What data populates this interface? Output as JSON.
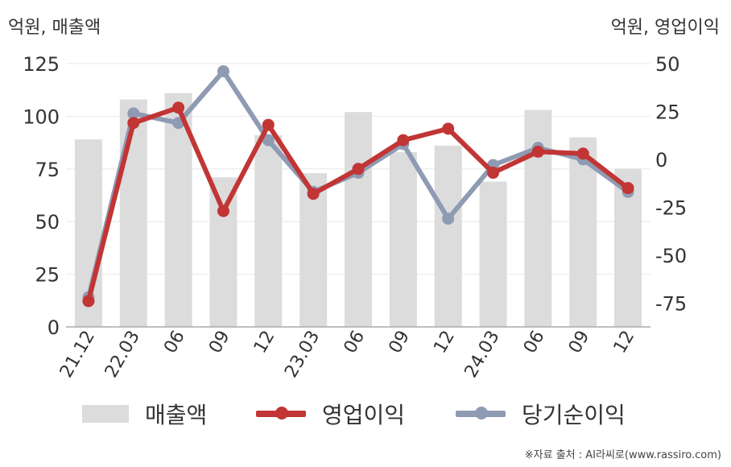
{
  "left_unit_label": "억원, 매출액",
  "right_unit_label": "억원, 영업이익",
  "source": "※자료 출처 : AI라씨로(www.rassiro.com)",
  "colors": {
    "bar": "#dcdcdc",
    "op_income": "#c23535",
    "net_income": "#8f9bb3",
    "axis": "#aaaaaa",
    "grid": "#e8e8e8",
    "text": "#333333"
  },
  "chart_data": {
    "type": "bar",
    "categories": [
      "21.12",
      "22.03",
      "06",
      "09",
      "12",
      "23.03",
      "06",
      "09",
      "12",
      "24.03",
      "06",
      "09",
      "12"
    ],
    "y_left": {
      "ylim": [
        0,
        125
      ],
      "ticks": [
        "0",
        "25",
        "50",
        "75",
        "100",
        "125"
      ]
    },
    "y_right": {
      "ylim": [
        -87.5,
        50
      ],
      "ticks": [
        "-75",
        "-50",
        "-25",
        "0",
        "25",
        "50"
      ]
    },
    "grid": true,
    "legend_position": "bottom",
    "series": [
      {
        "name": "매출액",
        "type": "bar",
        "axis": "left",
        "values": [
          89,
          108,
          111,
          71,
          91,
          73,
          102,
          83,
          86,
          69,
          103,
          90,
          75
        ]
      },
      {
        "name": "영업이익",
        "type": "line",
        "axis": "right",
        "values": [
          -74,
          19,
          27,
          -27,
          18,
          -18,
          -5,
          10,
          16,
          -7,
          4,
          3,
          -15
        ]
      },
      {
        "name": "당기순이익",
        "type": "line",
        "axis": "right",
        "values": [
          -72,
          24,
          19,
          46,
          10,
          -17,
          -7,
          8,
          -31,
          -3,
          6,
          0,
          -17
        ]
      }
    ]
  }
}
